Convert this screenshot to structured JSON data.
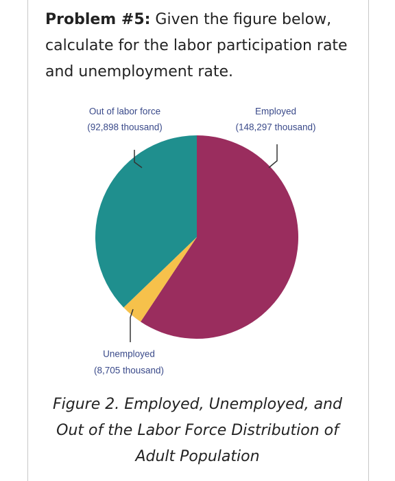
{
  "problem": {
    "label": "Problem #5:",
    "text": "Given the figure below, calculate for the labor participation rate and unemployment rate."
  },
  "chart_data": {
    "type": "pie",
    "categories": [
      "Employed",
      "Unemployed",
      "Out of labor force"
    ],
    "values": [
      148297,
      8705,
      92898
    ],
    "value_labels": [
      "(148,297 thousand)",
      "(8,705 thousand)",
      "(92,898 thousand)"
    ],
    "colors": [
      "#9a2d5e",
      "#f6c14b",
      "#1f8f8e"
    ]
  },
  "caption": "Figure 2. Employed, Unemployed, and Out of the Labor Force Distribution of Adult Population"
}
